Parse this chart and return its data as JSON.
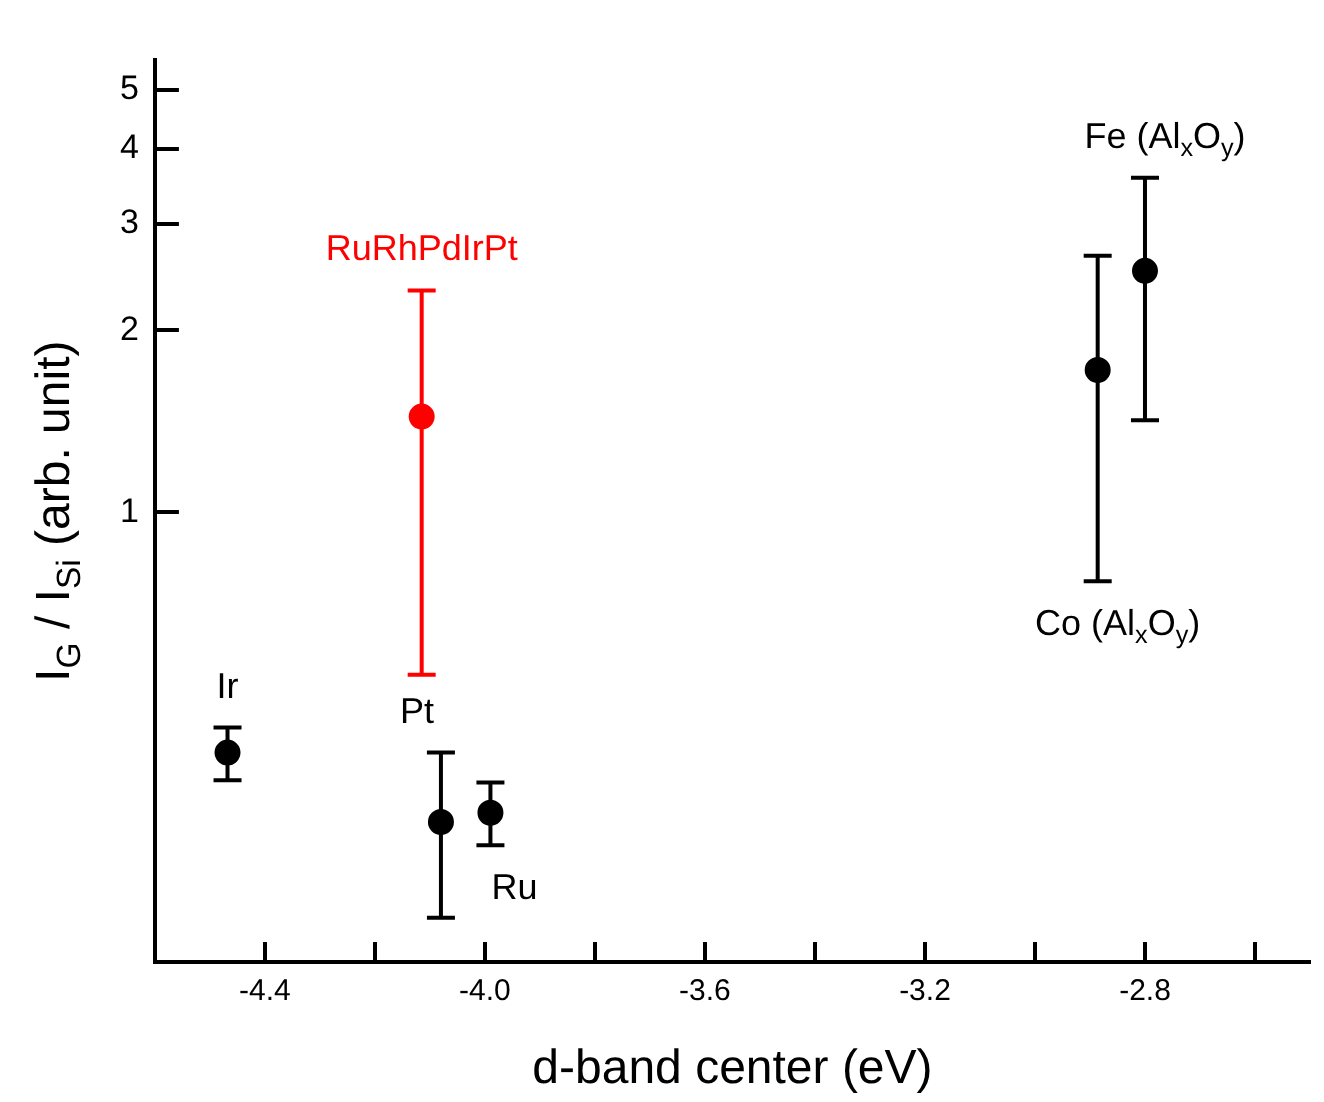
{
  "chart_data": {
    "type": "scatter",
    "xlabel": "d-band center (eV)",
    "ylabel": "I$_{G}$ / I$_{Si}$ (arb. unit)",
    "xlim": [
      -4.6,
      -2.5
    ],
    "xticks": [
      -4.4,
      {
        "value": -4.2,
        "label": null
      },
      "-4.0",
      {
        "value": -3.8,
        "label": null
      },
      -3.6,
      {
        "value": -3.4,
        "label": null
      },
      -3.2,
      {
        "value": -3.0,
        "label": null
      },
      -2.8,
      {
        "value": -2.6,
        "label": null
      }
    ],
    "ylim": [
      0.18,
      5.6
    ],
    "yticks": [
      1,
      2,
      3,
      4,
      5
    ],
    "log": true,
    "grid": false,
    "legend": false,
    "marker": "circle",
    "series": [
      {
        "color": "#000000",
        "x": [
          -4.468,
          -4.08,
          -3.99,
          -2.886,
          -2.8
        ],
        "values": [
          0.4,
          0.307,
          0.318,
          1.72,
          2.51
        ],
        "errors": [
          [
            0.36,
            0.44
          ],
          [
            0.213,
            0.4
          ],
          [
            0.281,
            0.357
          ],
          [
            0.769,
            2.66
          ],
          [
            1.42,
            3.58
          ]
        ]
      },
      {
        "color": "#ff0000",
        "x": [
          -4.115
        ],
        "values": [
          1.44
        ],
        "errors": [
          [
            0.538,
            2.33
          ]
        ]
      }
    ],
    "annotations": [
      {
        "text": "Ir",
        "x": -4.468,
        "y": 0.44
      },
      {
        "text": "Pt",
        "x": -4.08,
        "y": 0.4
      },
      {
        "text": "Ru",
        "x": -3.99,
        "y": 0.281
      },
      {
        "text": "RuRhPdIrPt",
        "x": -4.115,
        "y": 2.33
      },
      {
        "text": "Fe (Al$_{x}$O$_{y}$)",
        "x": -2.8,
        "y": 3.58
      },
      {
        "text": "Co (Al$_{x}$O$_{y}$)",
        "x": -2.886,
        "y": 0.769
      }
    ]
  }
}
